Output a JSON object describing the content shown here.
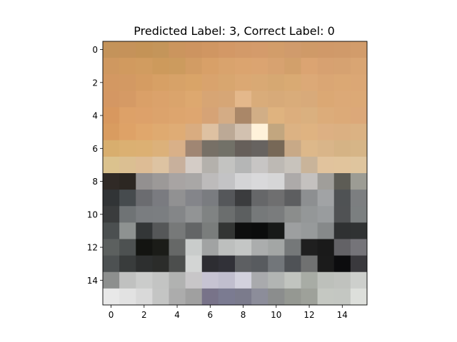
{
  "chart_data": {
    "type": "heatmap",
    "title": "Predicted Label: 3, Correct Label: 0",
    "predicted_label": 3,
    "correct_label": 0,
    "rows": 16,
    "cols": 16,
    "x_ticks": [
      "0",
      "2",
      "4",
      "6",
      "8",
      "10",
      "12",
      "14"
    ],
    "y_ticks": [
      "0",
      "2",
      "4",
      "6",
      "8",
      "10",
      "12",
      "14"
    ],
    "xlim": [
      -0.5,
      15.5
    ],
    "ylim": [
      15.5,
      -0.5
    ],
    "grid": false,
    "pixels": [
      [
        "#c4935a",
        "#c5925a",
        "#c49357",
        "#c4955a",
        "#cb955e",
        "#cd9460",
        "#d09662",
        "#d39866",
        "#d39a69",
        "#d49b6b",
        "#d29d6a",
        "#d09b6c",
        "#cf9a68",
        "#d09969",
        "#d09a6a",
        "#d29c6b"
      ],
      [
        "#cf9860",
        "#d19a5f",
        "#d19c60",
        "#cd9a5c",
        "#cc9b5e",
        "#d29c64",
        "#d8a068",
        "#d9a36d",
        "#dba46f",
        "#dba471",
        "#d7a270",
        "#d2a06b",
        "#dba472",
        "#d7a171",
        "#d6a271",
        "#d9a573"
      ],
      [
        "#d39862",
        "#d39963",
        "#d59c62",
        "#d7a065",
        "#d7a268",
        "#d9a468",
        "#d9a36d",
        "#d8a66f",
        "#dba873",
        "#d9a974",
        "#d6a872",
        "#d9aa73",
        "#dca977",
        "#daa674",
        "#dba874",
        "#dba775"
      ],
      [
        "#d49763",
        "#d59a65",
        "#daa068",
        "#dba26b",
        "#daa46c",
        "#dda86f",
        "#d7a574",
        "#d6a676",
        "#e4b88b",
        "#d9ac7a",
        "#d7aa79",
        "#d9ac7a",
        "#d8aa7a",
        "#dba874",
        "#dca977",
        "#dca976"
      ],
      [
        "#d8985f",
        "#dda168",
        "#dda16a",
        "#dca36c",
        "#dda56e",
        "#dea670",
        "#d6a376",
        "#d4ac85",
        "#aa8768",
        "#d1ae86",
        "#dfb37f",
        "#dcae7d",
        "#dab07f",
        "#dcac7a",
        "#dcaa78",
        "#dca879"
      ],
      [
        "#d99c60",
        "#dea267",
        "#e0a76c",
        "#dfaa70",
        "#dfac75",
        "#d9ac80",
        "#dec1a2",
        "#bca996",
        "#d2c1b0",
        "#fff2da",
        "#c2a67f",
        "#dcb283",
        "#dfb381",
        "#ddb083",
        "#dbb082",
        "#dbb283"
      ],
      [
        "#d8ae6e",
        "#dbb072",
        "#dcb073",
        "#dcb17a",
        "#d9b088",
        "#a08673",
        "#777066",
        "#727168",
        "#665f5a",
        "#676360",
        "#776857",
        "#c8a987",
        "#ddb88a",
        "#d9b589",
        "#d5b385",
        "#d6b587"
      ],
      [
        "#dbc28e",
        "#dbbf92",
        "#ddbc95",
        "#ddc3a2",
        "#c8b09c",
        "#d4ccc6",
        "#b4b1ac",
        "#c3c3c1",
        "#b5b6b6",
        "#c7c5c4",
        "#bdb9b4",
        "#c8c3bc",
        "#c9b49a",
        "#e1c39d",
        "#e1c49c",
        "#dfc59e"
      ],
      [
        "#302a26",
        "#2c2722",
        "#939090",
        "#9c9998",
        "#a8a4a3",
        "#a9a7a6",
        "#bdbbbb",
        "#c3c3c5",
        "#d4d4d6",
        "#d9d9db",
        "#d6d6d7",
        "#adaaa9",
        "#c4c1bf",
        "#a09e9a",
        "#5d5c55",
        "#9c9c94"
      ],
      [
        "#313436",
        "#464b4e",
        "#6b6c70",
        "#7a7b80",
        "#919192",
        "#84858a",
        "#7a7c80",
        "#55575a",
        "#3b3c3e",
        "#666769",
        "#6f6f70",
        "#5d5e60",
        "#8d8f91",
        "#a1a3a5",
        "#4f5254",
        "#7c7e80"
      ],
      [
        "#3a3c3d",
        "#6f7375",
        "#7a7d80",
        "#7b7e81",
        "#848688",
        "#929495",
        "#808383",
        "#6b6e6e",
        "#5c5f60",
        "#76797a",
        "#7a7c7d",
        "#8b8d8c",
        "#949798",
        "#999c9e",
        "#505254",
        "#7b7f80"
      ],
      [
        "#4b4f50",
        "#8e9291",
        "#333637",
        "#555758",
        "#777979",
        "#636566",
        "#7a7d7c",
        "#333534",
        "#0d0e0e",
        "#0b0c0c",
        "#171918",
        "#9d9fa0",
        "#979a9b",
        "#86898a",
        "#2f3132",
        "#303233"
      ],
      [
        "#5c605f",
        "#4d5151",
        "#131411",
        "#1b1c18",
        "#666867",
        "#c9cccb",
        "#a1a3a3",
        "#bdbfbe",
        "#c4c6c5",
        "#abadad",
        "#a3a6a5",
        "#757879",
        "#1f1f1f",
        "#1a1a1a",
        "#636266",
        "#757479"
      ],
      [
        "#4d5152",
        "#393c3c",
        "#2d2f2f",
        "#2b2c2a",
        "#4c4e4d",
        "#d3d5d4",
        "#2d2d32",
        "#313138",
        "#5d5f62",
        "#585b5f",
        "#72767a",
        "#4f5256",
        "#707171",
        "#1b1b1b",
        "#0c0c0e",
        "#3a393d"
      ],
      [
        "#8d8f8e",
        "#c0c1c0",
        "#cbcccb",
        "#c3c4c3",
        "#b1b2b1",
        "#c8c6c8",
        "#c6c3d2",
        "#c0bece",
        "#d2d1dd",
        "#a9aaad",
        "#b2b5b3",
        "#c1c4bf",
        "#a8aca5",
        "#bdc0bb",
        "#c0c2be",
        "#cdcfcc"
      ],
      [
        "#e8e8e8",
        "#e2e2e2",
        "#d9d9d9",
        "#c4c5c4",
        "#acacac",
        "#a0a0a0",
        "#787389",
        "#7b7b91",
        "#7b7b8c",
        "#8c8d9a",
        "#8b8d8d",
        "#959892",
        "#9ea19a",
        "#c5c8c2",
        "#c4c7c2",
        "#dddfdb"
      ]
    ]
  }
}
